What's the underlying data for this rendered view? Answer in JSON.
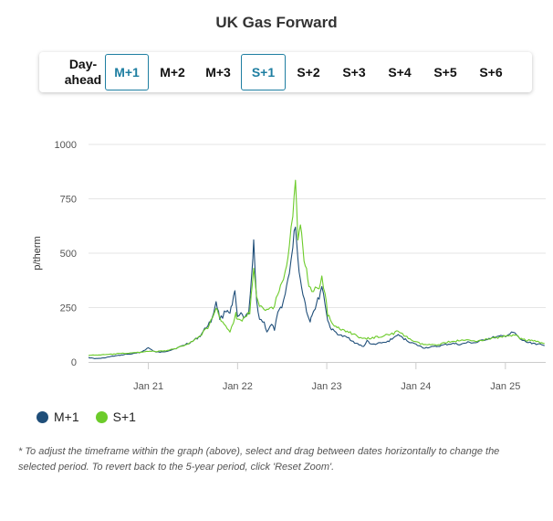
{
  "title": "UK Gas Forward",
  "tabs": [
    {
      "label": "Day-ahead",
      "selected": false
    },
    {
      "label": "M+1",
      "selected": true
    },
    {
      "label": "M+2",
      "selected": false
    },
    {
      "label": "M+3",
      "selected": false
    },
    {
      "label": "S+1",
      "selected": true
    },
    {
      "label": "S+2",
      "selected": false
    },
    {
      "label": "S+3",
      "selected": false
    },
    {
      "label": "S+4",
      "selected": false
    },
    {
      "label": "S+5",
      "selected": false
    },
    {
      "label": "S+6",
      "selected": false
    }
  ],
  "colors": {
    "m1": "#1f4e79",
    "s1": "#6ccb2a",
    "selected_tab": "#1e7ea1",
    "grid": "#e6e6e6"
  },
  "footnote": "* To adjust the timeframe within the graph (above), select and drag between dates horizontally to change the selected period. To revert back to the 5-year period, click 'Reset Zoom'.",
  "chart_data": {
    "type": "line",
    "title": "",
    "xlabel": "",
    "ylabel": "p/therm",
    "ylim": [
      0,
      1000
    ],
    "xlim": [
      "2020-05-01",
      "2025-06-15"
    ],
    "yticks": [
      0,
      250,
      500,
      750,
      1000
    ],
    "xticks": [
      {
        "date": "2021-01-01",
        "label": "Jan 21"
      },
      {
        "date": "2022-01-01",
        "label": "Jan 22"
      },
      {
        "date": "2023-01-01",
        "label": "Jan 23"
      },
      {
        "date": "2024-01-01",
        "label": "Jan 24"
      },
      {
        "date": "2025-01-01",
        "label": "Jan 25"
      }
    ],
    "grid": true,
    "legend": "bottom-left",
    "series": [
      {
        "name": "M+1",
        "color": "#1f4e79",
        "points": [
          [
            "2020-05-01",
            20
          ],
          [
            "2020-06-01",
            15
          ],
          [
            "2020-07-01",
            18
          ],
          [
            "2020-08-01",
            25
          ],
          [
            "2020-09-01",
            30
          ],
          [
            "2020-10-01",
            35
          ],
          [
            "2020-11-01",
            38
          ],
          [
            "2020-12-01",
            45
          ],
          [
            "2021-01-01",
            65
          ],
          [
            "2021-01-15",
            55
          ],
          [
            "2021-02-01",
            45
          ],
          [
            "2021-03-01",
            45
          ],
          [
            "2021-04-01",
            55
          ],
          [
            "2021-05-01",
            65
          ],
          [
            "2021-06-01",
            80
          ],
          [
            "2021-07-01",
            95
          ],
          [
            "2021-08-01",
            120
          ],
          [
            "2021-09-01",
            170
          ],
          [
            "2021-09-20",
            200
          ],
          [
            "2021-10-05",
            280
          ],
          [
            "2021-10-20",
            200
          ],
          [
            "2021-11-01",
            210
          ],
          [
            "2021-11-15",
            240
          ],
          [
            "2021-12-01",
            230
          ],
          [
            "2021-12-10",
            260
          ],
          [
            "2021-12-21",
            320
          ],
          [
            "2022-01-01",
            200
          ],
          [
            "2022-01-15",
            220
          ],
          [
            "2022-02-01",
            200
          ],
          [
            "2022-02-15",
            230
          ],
          [
            "2022-03-01",
            400
          ],
          [
            "2022-03-08",
            540
          ],
          [
            "2022-03-20",
            280
          ],
          [
            "2022-04-01",
            200
          ],
          [
            "2022-04-20",
            180
          ],
          [
            "2022-05-01",
            140
          ],
          [
            "2022-05-20",
            170
          ],
          [
            "2022-06-01",
            150
          ],
          [
            "2022-06-15",
            220
          ],
          [
            "2022-07-01",
            260
          ],
          [
            "2022-07-15",
            310
          ],
          [
            "2022-08-01",
            420
          ],
          [
            "2022-08-15",
            520
          ],
          [
            "2022-08-26",
            640
          ],
          [
            "2022-09-05",
            470
          ],
          [
            "2022-09-20",
            340
          ],
          [
            "2022-10-01",
            300
          ],
          [
            "2022-10-10",
            230
          ],
          [
            "2022-10-25",
            190
          ],
          [
            "2022-11-01",
            220
          ],
          [
            "2022-11-15",
            250
          ],
          [
            "2022-12-01",
            300
          ],
          [
            "2022-12-12",
            350
          ],
          [
            "2022-12-25",
            270
          ],
          [
            "2023-01-05",
            190
          ],
          [
            "2023-01-20",
            150
          ],
          [
            "2023-02-01",
            140
          ],
          [
            "2023-02-15",
            130
          ],
          [
            "2023-03-01",
            120
          ],
          [
            "2023-04-01",
            110
          ],
          [
            "2023-05-01",
            85
          ],
          [
            "2023-06-01",
            70
          ],
          [
            "2023-06-15",
            100
          ],
          [
            "2023-07-01",
            80
          ],
          [
            "2023-08-01",
            85
          ],
          [
            "2023-09-01",
            90
          ],
          [
            "2023-10-01",
            110
          ],
          [
            "2023-10-15",
            125
          ],
          [
            "2023-11-01",
            115
          ],
          [
            "2023-12-01",
            95
          ],
          [
            "2024-01-01",
            80
          ],
          [
            "2024-02-01",
            65
          ],
          [
            "2024-03-01",
            68
          ],
          [
            "2024-04-01",
            72
          ],
          [
            "2024-05-01",
            80
          ],
          [
            "2024-06-01",
            85
          ],
          [
            "2024-07-01",
            80
          ],
          [
            "2024-08-01",
            90
          ],
          [
            "2024-09-01",
            88
          ],
          [
            "2024-10-01",
            100
          ],
          [
            "2024-11-01",
            110
          ],
          [
            "2024-12-01",
            115
          ],
          [
            "2025-01-01",
            120
          ],
          [
            "2025-02-01",
            135
          ],
          [
            "2025-02-15",
            125
          ],
          [
            "2025-03-01",
            105
          ],
          [
            "2025-04-01",
            90
          ],
          [
            "2025-05-01",
            85
          ],
          [
            "2025-06-10",
            75
          ]
        ]
      },
      {
        "name": "S+1",
        "color": "#6ccb2a",
        "points": [
          [
            "2020-05-01",
            30
          ],
          [
            "2020-06-01",
            32
          ],
          [
            "2020-07-01",
            33
          ],
          [
            "2020-08-01",
            35
          ],
          [
            "2020-09-01",
            38
          ],
          [
            "2020-10-01",
            40
          ],
          [
            "2020-11-01",
            42
          ],
          [
            "2020-12-01",
            45
          ],
          [
            "2021-01-01",
            50
          ],
          [
            "2021-02-01",
            48
          ],
          [
            "2021-03-01",
            50
          ],
          [
            "2021-04-01",
            55
          ],
          [
            "2021-05-01",
            65
          ],
          [
            "2021-06-01",
            80
          ],
          [
            "2021-07-01",
            95
          ],
          [
            "2021-08-01",
            120
          ],
          [
            "2021-09-01",
            160
          ],
          [
            "2021-09-20",
            200
          ],
          [
            "2021-10-05",
            250
          ],
          [
            "2021-10-20",
            200
          ],
          [
            "2021-11-01",
            190
          ],
          [
            "2021-11-20",
            150
          ],
          [
            "2021-12-01",
            140
          ],
          [
            "2021-12-15",
            180
          ],
          [
            "2021-12-25",
            220
          ],
          [
            "2022-01-01",
            190
          ],
          [
            "2022-02-01",
            200
          ],
          [
            "2022-02-20",
            230
          ],
          [
            "2022-03-08",
            430
          ],
          [
            "2022-03-20",
            290
          ],
          [
            "2022-04-01",
            250
          ],
          [
            "2022-05-01",
            240
          ],
          [
            "2022-05-20",
            260
          ],
          [
            "2022-06-01",
            250
          ],
          [
            "2022-06-15",
            320
          ],
          [
            "2022-07-01",
            370
          ],
          [
            "2022-07-15",
            420
          ],
          [
            "2022-08-01",
            540
          ],
          [
            "2022-08-15",
            650
          ],
          [
            "2022-08-26",
            825
          ],
          [
            "2022-09-05",
            560
          ],
          [
            "2022-09-15",
            620
          ],
          [
            "2022-09-25",
            530
          ],
          [
            "2022-10-05",
            440
          ],
          [
            "2022-10-20",
            360
          ],
          [
            "2022-11-01",
            330
          ],
          [
            "2022-11-15",
            340
          ],
          [
            "2022-12-01",
            350
          ],
          [
            "2022-12-12",
            380
          ],
          [
            "2022-12-25",
            310
          ],
          [
            "2023-01-05",
            220
          ],
          [
            "2023-01-20",
            180
          ],
          [
            "2023-02-01",
            160
          ],
          [
            "2023-03-01",
            150
          ],
          [
            "2023-04-01",
            140
          ],
          [
            "2023-05-01",
            120
          ],
          [
            "2023-06-01",
            105
          ],
          [
            "2023-07-01",
            110
          ],
          [
            "2023-08-01",
            115
          ],
          [
            "2023-09-01",
            125
          ],
          [
            "2023-10-01",
            130
          ],
          [
            "2023-10-15",
            140
          ],
          [
            "2023-11-01",
            130
          ],
          [
            "2023-12-01",
            110
          ],
          [
            "2024-01-01",
            90
          ],
          [
            "2024-02-01",
            80
          ],
          [
            "2024-03-01",
            78
          ],
          [
            "2024-04-01",
            80
          ],
          [
            "2024-05-01",
            90
          ],
          [
            "2024-06-01",
            95
          ],
          [
            "2024-07-01",
            98
          ],
          [
            "2024-08-01",
            100
          ],
          [
            "2024-09-01",
            98
          ],
          [
            "2024-10-01",
            100
          ],
          [
            "2024-11-01",
            108
          ],
          [
            "2024-12-01",
            112
          ],
          [
            "2025-01-01",
            118
          ],
          [
            "2025-02-01",
            125
          ],
          [
            "2025-02-15",
            120
          ],
          [
            "2025-03-01",
            110
          ],
          [
            "2025-04-01",
            100
          ],
          [
            "2025-05-01",
            95
          ],
          [
            "2025-06-10",
            85
          ]
        ]
      }
    ]
  }
}
